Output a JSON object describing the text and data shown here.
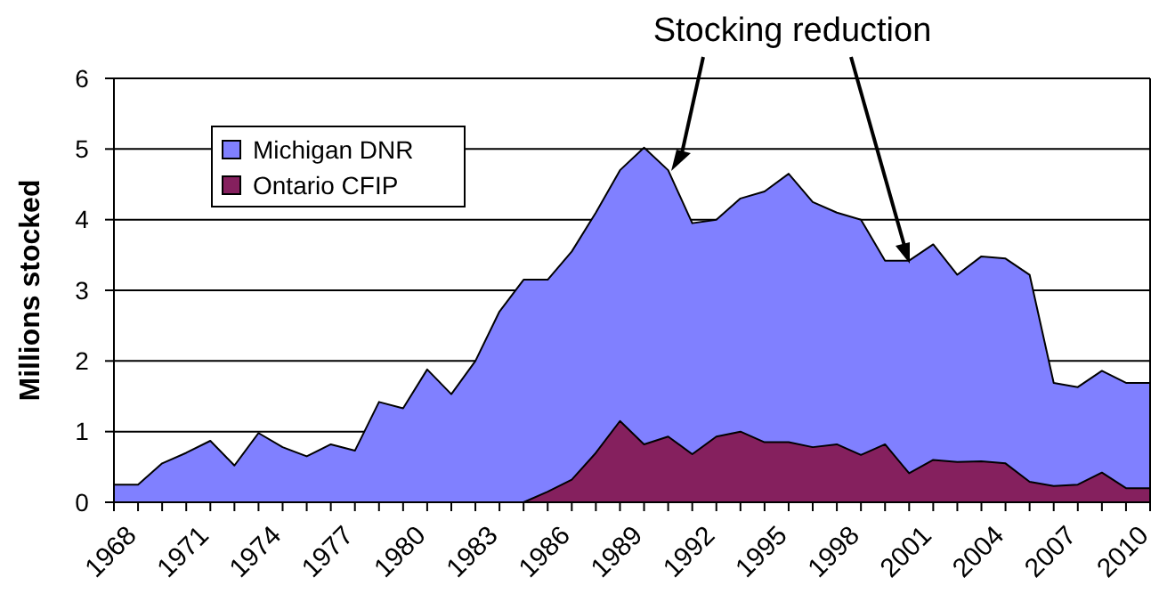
{
  "chart_data": {
    "type": "area",
    "ylabel": "Millions stocked",
    "annotations": [
      "Stocking reduction"
    ],
    "categories": [
      "1968",
      null,
      null,
      "1971",
      null,
      null,
      "1974",
      null,
      null,
      "1977",
      null,
      null,
      "1980",
      null,
      null,
      "1983",
      null,
      null,
      "1986",
      null,
      null,
      "1989",
      null,
      null,
      "1992",
      null,
      null,
      "1995",
      null,
      null,
      "1998",
      null,
      null,
      "2001",
      null,
      null,
      "2004",
      null,
      null,
      "2007",
      null,
      null,
      "2010",
      null
    ],
    "series": [
      {
        "name": "Michigan DNR",
        "color": "#8080ff",
        "values": [
          0.25,
          0.25,
          0.55,
          0.7,
          0.87,
          0.52,
          0.98,
          0.78,
          0.65,
          0.82,
          0.73,
          1.42,
          1.33,
          1.88,
          1.53,
          2.0,
          2.7,
          3.15,
          3.15,
          3.55,
          4.1,
          4.7,
          5.02,
          4.7,
          3.95,
          4.0,
          4.3,
          4.4,
          4.65,
          4.25,
          4.1,
          4.0,
          3.42,
          3.42,
          3.65,
          3.22,
          3.48,
          3.45,
          3.22,
          1.69,
          1.63,
          1.86,
          1.69,
          1.69
        ]
      },
      {
        "name": "Ontario CFIP",
        "color": "#85205e",
        "values": [
          null,
          null,
          null,
          null,
          null,
          null,
          null,
          null,
          null,
          null,
          null,
          null,
          null,
          null,
          null,
          null,
          null,
          0,
          0.15,
          0.32,
          0.7,
          1.15,
          0.82,
          0.93,
          0.68,
          0.93,
          1.0,
          0.85,
          0.85,
          0.78,
          0.82,
          0.67,
          0.82,
          0.41,
          0.6,
          0.57,
          0.58,
          0.55,
          0.29,
          0.23,
          0.25,
          0.42,
          0.2,
          0.2
        ]
      }
    ],
    "ylim": [
      0,
      6
    ],
    "yticks": [
      0,
      1,
      2,
      3,
      4,
      5,
      6
    ],
    "grid": "y",
    "legend": "top left"
  }
}
